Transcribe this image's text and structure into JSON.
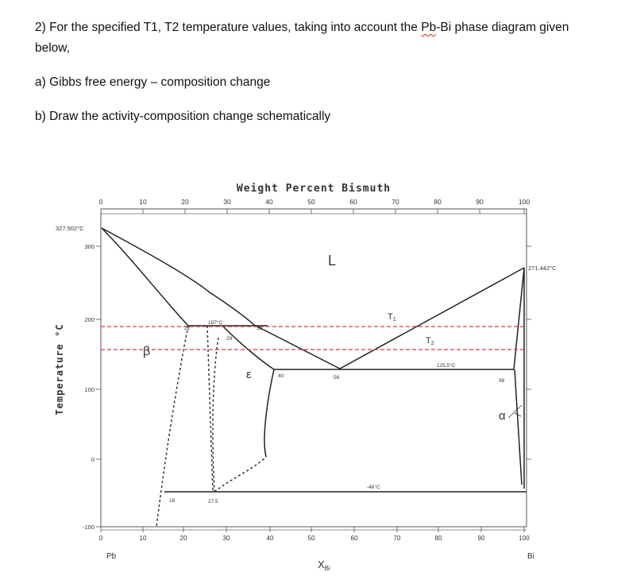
{
  "question": {
    "line1_part1": "2) For the specified T1, T2 temperature  values, taking into account the ",
    "line1_flagged_word": "Pb",
    "line1_part2": "-Bi phase diagram given",
    "line2": "below,",
    "part_a": "a) Gibbs free energy – composition change",
    "part_b": "b) Draw the activity-composition change schematically"
  },
  "diagram": {
    "top_axis_title": "Weight Percent Bismuth",
    "top_ticks": [
      "0",
      "10",
      "20",
      "30",
      "40",
      "50",
      "60",
      "70",
      "80",
      "90",
      "100"
    ],
    "bottom_ticks": [
      "0",
      "10",
      "20",
      "30",
      "40",
      "50",
      "60",
      "70",
      "80",
      "90",
      "100"
    ],
    "y_ticks": [
      "300",
      "200",
      "100",
      "0",
      "-100"
    ],
    "y_axis_title": "Temperature °C",
    "bottom_left_element": "Pb",
    "bottom_right_element": "Bi",
    "x_axis_title": "X",
    "x_axis_subscript": "Bi",
    "annotations": {
      "pb_melting": "327.502°C",
      "bi_melting": "271.442°C",
      "liquid": "L",
      "beta": "β",
      "epsilon": "ε",
      "alpha": "α",
      "T1": "T",
      "T1_sub": "1",
      "T2": "T",
      "T2_sub": "2",
      "peritectic_temp": "187°C",
      "eutectic_temp": "125.5°C",
      "low_temp": "-46°C",
      "comp_22": "22",
      "comp_29": "29",
      "comp_36": "36",
      "comp_40": "40",
      "comp_56": "56",
      "comp_98": "98",
      "comp_16": "16",
      "comp_27_5": "27.5"
    }
  }
}
